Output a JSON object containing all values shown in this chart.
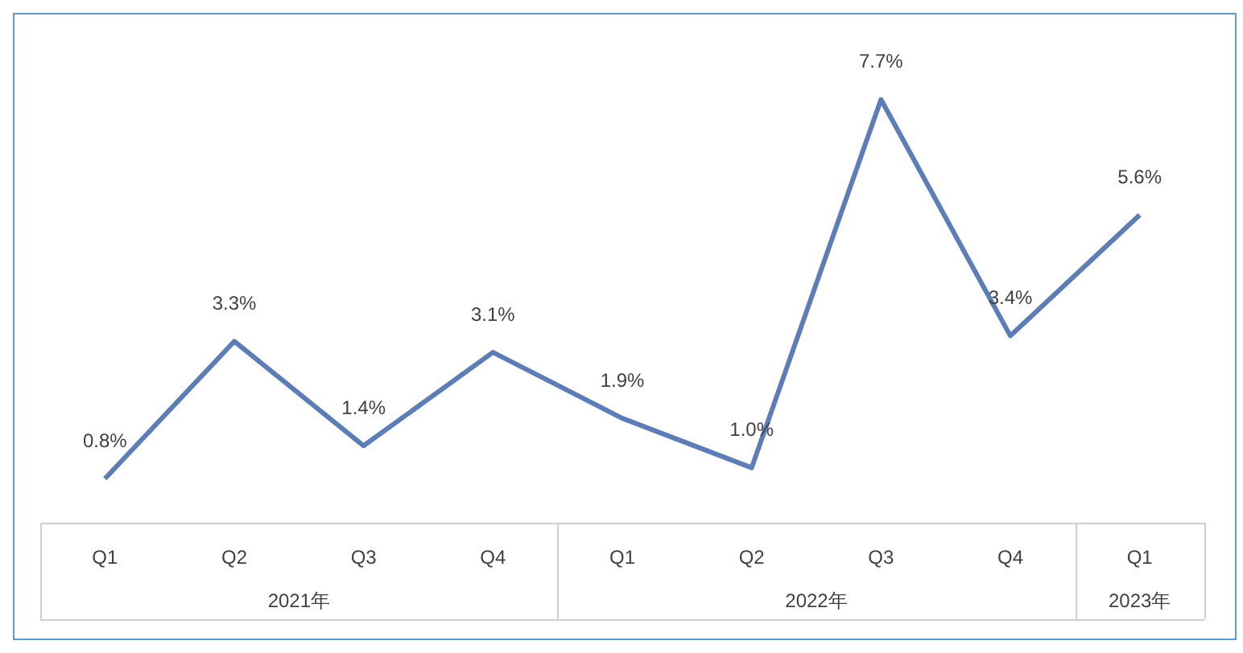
{
  "chart_data": {
    "type": "line",
    "categories": [
      "Q1",
      "Q2",
      "Q3",
      "Q4",
      "Q1",
      "Q2",
      "Q3",
      "Q4",
      "Q1"
    ],
    "series": [
      {
        "color": "#5b7db8",
        "values": [
          0.8,
          3.3,
          1.4,
          3.1,
          1.9,
          1.0,
          7.7,
          3.4,
          5.6
        ],
        "value_labels": [
          "0.8%",
          "3.3%",
          "1.4%",
          "3.1%",
          "1.9%",
          "1.0%",
          "7.7%",
          "3.4%",
          "5.6%"
        ]
      }
    ],
    "annotations": [
      "2021年",
      "2022年",
      "2023年"
    ],
    "marker": "none",
    "legend": false
  }
}
